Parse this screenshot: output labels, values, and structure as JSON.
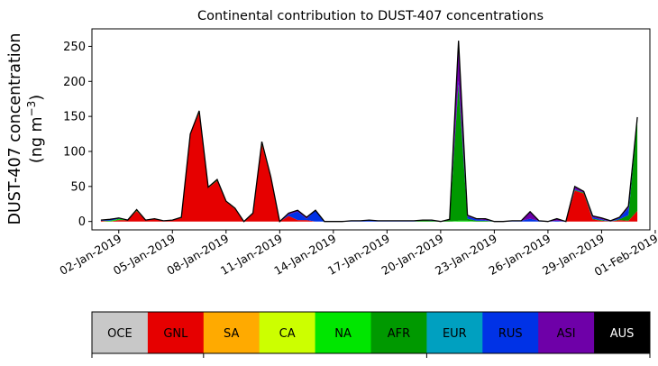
{
  "chart_data": {
    "type": "area",
    "title": "Continental contribution to DUST-407 concentrations",
    "ylabel_line1": "DUST-407 concentration",
    "ylabel_line2_prefix": "(ng m",
    "ylabel_line2_sup": "−3",
    "ylabel_line2_suffix": ")",
    "ylim": [
      -12,
      275
    ],
    "yticks": [
      0,
      50,
      100,
      150,
      200,
      250
    ],
    "xlim": [
      0,
      31.2
    ],
    "xticks": [
      {
        "day": 1,
        "label": "02-Jan-2019"
      },
      {
        "day": 4,
        "label": "05-Jan-2019"
      },
      {
        "day": 7,
        "label": "08-Jan-2019"
      },
      {
        "day": 10,
        "label": "11-Jan-2019"
      },
      {
        "day": 13,
        "label": "14-Jan-2019"
      },
      {
        "day": 16,
        "label": "17-Jan-2019"
      },
      {
        "day": 19,
        "label": "20-Jan-2019"
      },
      {
        "day": 22,
        "label": "23-Jan-2019"
      },
      {
        "day": 25,
        "label": "26-Jan-2019"
      },
      {
        "day": 28,
        "label": "29-Jan-2019"
      },
      {
        "day": 31,
        "label": "01-Feb-2019"
      }
    ],
    "x": [
      0.0,
      0.5,
      1.0,
      1.5,
      2.0,
      2.5,
      3.0,
      3.5,
      4.0,
      4.5,
      5.0,
      5.5,
      6.0,
      6.5,
      7.0,
      7.5,
      8.0,
      8.5,
      9.0,
      9.5,
      10.0,
      10.5,
      11.0,
      11.5,
      12.0,
      12.5,
      13.0,
      13.5,
      14.0,
      14.5,
      15.0,
      15.5,
      16.0,
      16.5,
      17.0,
      17.5,
      18.0,
      18.5,
      19.0,
      19.5,
      20.0,
      20.5,
      21.0,
      21.5,
      22.0,
      22.5,
      23.0,
      23.5,
      24.0,
      24.5,
      25.0,
      25.5,
      26.0,
      26.5,
      27.0,
      27.5,
      28.0,
      28.5,
      29.0,
      29.5,
      30.0
    ],
    "series": [
      {
        "name": "OCE",
        "color": "#c8c8c8",
        "values": [
          0,
          0,
          0,
          0,
          0,
          0,
          0,
          0,
          0,
          0,
          0,
          0,
          0,
          0,
          0,
          0,
          0,
          0,
          0,
          0,
          0,
          0,
          0,
          0,
          0,
          0,
          0,
          0,
          0,
          0,
          0,
          0,
          0,
          0,
          0,
          0,
          0,
          0,
          0,
          0,
          0,
          0,
          0,
          0,
          0,
          0,
          0,
          0,
          0,
          0,
          0,
          0,
          0,
          0,
          0,
          0,
          0,
          0,
          0,
          0,
          0
        ]
      },
      {
        "name": "GNL",
        "color": "#e60000",
        "values": [
          1,
          0,
          2,
          2,
          15,
          2,
          4,
          1,
          2,
          5,
          125,
          155,
          48,
          58,
          28,
          18,
          0,
          12,
          110,
          62,
          0,
          8,
          2,
          2,
          0,
          0,
          0,
          0,
          0,
          0,
          0,
          0,
          0,
          0,
          0,
          0,
          0,
          0,
          0,
          0,
          0,
          0,
          0,
          0,
          0,
          0,
          0,
          0,
          0,
          0,
          0,
          0,
          0,
          44,
          40,
          3,
          1,
          0,
          2,
          1,
          15
        ]
      },
      {
        "name": "SA",
        "color": "#ffaa00",
        "values": [
          0,
          0,
          0,
          0,
          0,
          0,
          0,
          0,
          0,
          0,
          0,
          0,
          0,
          0,
          0,
          0,
          0,
          0,
          0,
          0,
          0,
          0,
          0,
          0,
          0,
          0,
          0,
          0,
          0,
          0,
          0,
          0,
          0,
          0,
          0,
          0,
          0,
          0,
          0,
          0,
          0,
          0,
          0,
          0,
          0,
          0,
          0,
          0,
          0,
          0,
          0,
          0,
          0,
          0,
          0,
          0,
          0,
          0,
          0,
          0,
          0
        ]
      },
      {
        "name": "CA",
        "color": "#ccff00",
        "values": [
          0,
          0,
          0,
          0,
          0,
          0,
          0,
          0,
          0,
          0,
          0,
          0,
          0,
          0,
          0,
          0,
          0,
          0,
          0,
          0,
          0,
          0,
          0,
          0,
          0,
          0,
          0,
          0,
          0,
          0,
          0,
          0,
          0,
          0,
          0,
          0,
          0,
          0,
          0,
          0,
          0,
          0,
          0,
          0,
          0,
          0,
          0,
          0,
          0,
          0,
          0,
          0,
          0,
          0,
          0,
          0,
          0,
          0,
          0,
          0,
          0
        ]
      },
      {
        "name": "NA",
        "color": "#00e600",
        "values": [
          0,
          1,
          1,
          0,
          1,
          0,
          0,
          0,
          0,
          0,
          0,
          0,
          0,
          0,
          0,
          0,
          0,
          0,
          0,
          0,
          0,
          0,
          0,
          0,
          0,
          0,
          0,
          0,
          0,
          0,
          0,
          0,
          0,
          0,
          0,
          0,
          0,
          0,
          0,
          0,
          1,
          1,
          0,
          0,
          0,
          0,
          0,
          0,
          0,
          0,
          0,
          0,
          0,
          0,
          0,
          0,
          0,
          0,
          0,
          0,
          0
        ]
      },
      {
        "name": "AFR",
        "color": "#009900",
        "values": [
          0,
          0,
          1,
          0,
          0,
          0,
          0,
          0,
          0,
          1,
          0,
          3,
          1,
          2,
          1,
          1,
          0,
          0,
          4,
          2,
          0,
          0,
          0,
          0,
          0,
          0,
          0,
          0,
          0,
          0,
          0,
          0,
          0,
          0,
          0,
          0,
          2,
          1,
          0,
          2,
          195,
          3,
          1,
          1,
          0,
          0,
          0,
          0,
          0,
          0,
          0,
          0,
          0,
          1,
          1,
          1,
          1,
          0,
          1,
          8,
          130
        ]
      },
      {
        "name": "EUR",
        "color": "#00a0c0",
        "values": [
          0,
          0,
          0,
          0,
          0,
          0,
          0,
          0,
          0,
          0,
          0,
          0,
          0,
          0,
          0,
          0,
          0,
          0,
          0,
          0,
          0,
          0,
          0,
          0,
          0,
          0,
          0,
          0,
          0,
          0,
          0,
          0,
          0,
          0,
          0,
          0,
          0,
          0,
          0,
          0,
          0,
          0,
          0,
          0,
          0,
          0,
          0,
          0,
          0,
          0,
          0,
          0,
          0,
          0,
          0,
          0,
          0,
          0,
          0,
          0,
          0
        ]
      },
      {
        "name": "RUS",
        "color": "#0032e6",
        "values": [
          1,
          2,
          1,
          0,
          1,
          0,
          0,
          0,
          0,
          0,
          0,
          0,
          0,
          0,
          0,
          0,
          0,
          0,
          0,
          0,
          0,
          2,
          12,
          2,
          16,
          0,
          0,
          0,
          1,
          1,
          2,
          1,
          1,
          1,
          1,
          1,
          0,
          1,
          0,
          0,
          5,
          3,
          2,
          1,
          0,
          0,
          1,
          1,
          4,
          1,
          0,
          1,
          0,
          1,
          0,
          2,
          1,
          0,
          2,
          10,
          2
        ]
      },
      {
        "name": "ASI",
        "color": "#6e00a8",
        "values": [
          0,
          0,
          0,
          0,
          0,
          0,
          0,
          0,
          0,
          0,
          0,
          0,
          0,
          0,
          0,
          0,
          0,
          0,
          0,
          0,
          0,
          2,
          2,
          2,
          0,
          0,
          0,
          0,
          0,
          0,
          0,
          0,
          0,
          0,
          0,
          0,
          0,
          0,
          0,
          1,
          57,
          2,
          1,
          2,
          0,
          0,
          0,
          0,
          10,
          0,
          0,
          3,
          0,
          4,
          2,
          2,
          2,
          1,
          1,
          3,
          2
        ]
      },
      {
        "name": "AUS",
        "color": "#000000",
        "values": [
          0,
          0,
          0,
          0,
          0,
          0,
          0,
          0,
          0,
          0,
          0,
          0,
          0,
          0,
          0,
          0,
          0,
          0,
          0,
          0,
          0,
          0,
          0,
          0,
          0,
          0,
          0,
          0,
          0,
          0,
          0,
          0,
          0,
          0,
          0,
          0,
          0,
          0,
          0,
          0,
          0,
          0,
          0,
          0,
          0,
          0,
          0,
          0,
          0,
          0,
          0,
          0,
          0,
          0,
          0,
          0,
          0,
          0,
          0,
          0,
          0
        ]
      }
    ],
    "legend": {
      "placement": "bottom",
      "items": [
        {
          "label": "OCE",
          "color": "#c8c8c8",
          "text_color": "#000000"
        },
        {
          "label": "GNL",
          "color": "#e60000",
          "text_color": "#000000"
        },
        {
          "label": "SA",
          "color": "#ffaa00",
          "text_color": "#000000"
        },
        {
          "label": "CA",
          "color": "#ccff00",
          "text_color": "#000000"
        },
        {
          "label": "NA",
          "color": "#00e600",
          "text_color": "#000000"
        },
        {
          "label": "AFR",
          "color": "#009900",
          "text_color": "#000000"
        },
        {
          "label": "EUR",
          "color": "#00a0c0",
          "text_color": "#000000"
        },
        {
          "label": "RUS",
          "color": "#0032e6",
          "text_color": "#000000"
        },
        {
          "label": "ASI",
          "color": "#6e00a8",
          "text_color": "#000000"
        },
        {
          "label": "AUS",
          "color": "#000000",
          "text_color": "#ffffff"
        }
      ]
    }
  }
}
